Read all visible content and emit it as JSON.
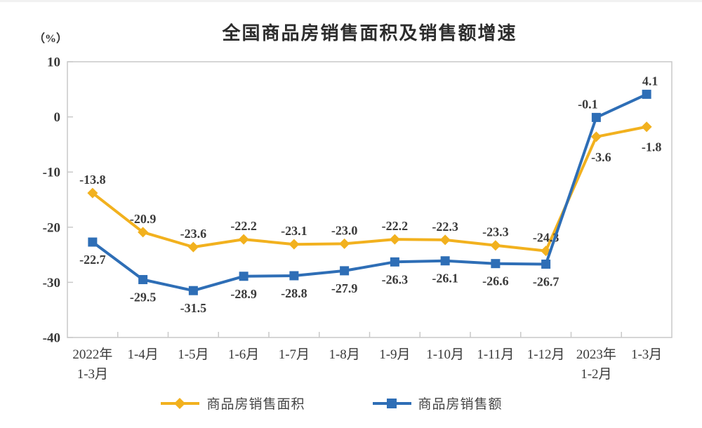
{
  "title": "全国商品房销售面积及销售额增速",
  "y_axis_unit_label": "（%）",
  "colors": {
    "series_area": "#F2B11E",
    "series_amount": "#2E6EB6",
    "axis": "#c9c9c9",
    "text": "#3a3a3a"
  },
  "chart_data": {
    "type": "line",
    "title": "全国商品房销售面积及销售额增速",
    "ylabel": "（%）",
    "categories": [
      "2022年\n1-3月",
      "1-4月",
      "1-5月",
      "1-6月",
      "1-7月",
      "1-8月",
      "1-9月",
      "1-10月",
      "1-11月",
      "1-12月",
      "2023年\n1-2月",
      "1-3月"
    ],
    "series": [
      {
        "name": "商品房销售面积",
        "marker": "diamond",
        "color": "#F2B11E",
        "values": [
          -13.8,
          -20.9,
          -23.6,
          -22.2,
          -23.1,
          -23.0,
          -22.2,
          -22.3,
          -23.3,
          -24.3,
          -3.6,
          -1.8
        ]
      },
      {
        "name": "商品房销售额",
        "marker": "square",
        "color": "#2E6EB6",
        "values": [
          -22.7,
          -29.5,
          -31.5,
          -28.9,
          -28.8,
          -27.9,
          -26.3,
          -26.1,
          -26.6,
          -26.7,
          -0.1,
          4.1
        ]
      }
    ],
    "ylim": [
      -40,
      10
    ],
    "y_ticks": [
      10,
      0,
      -10,
      -20,
      -30,
      -40
    ],
    "grid": false,
    "legend_position": "bottom"
  }
}
